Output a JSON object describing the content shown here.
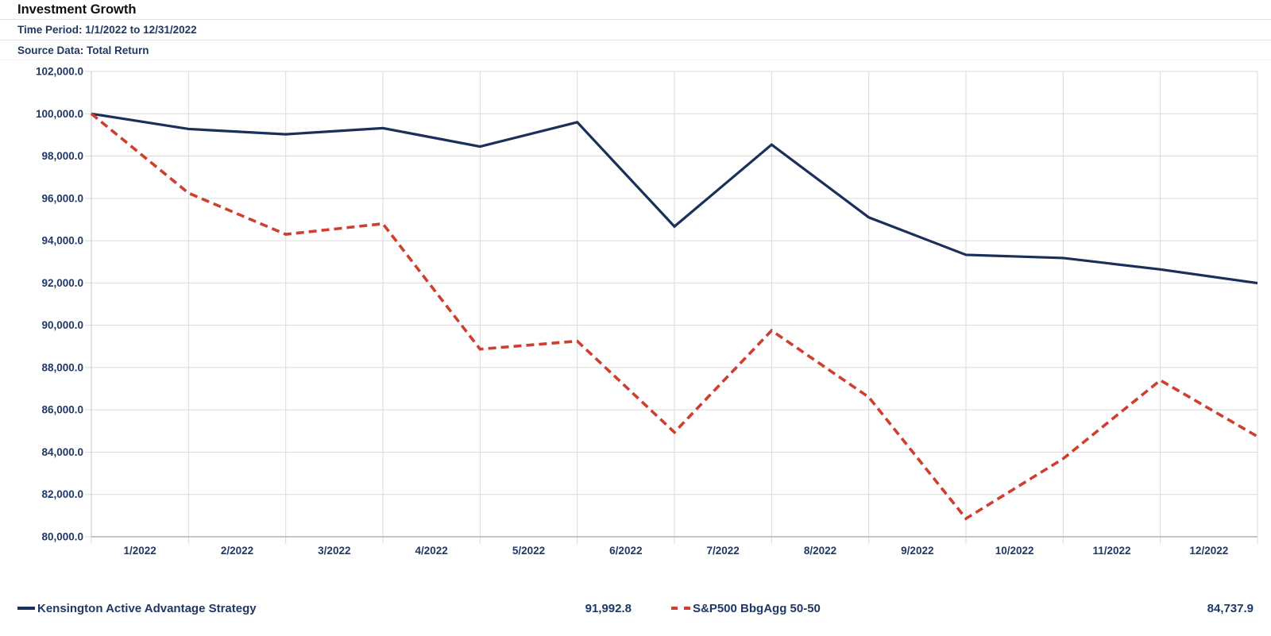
{
  "header": {
    "title": "Investment Growth",
    "time_period": "Time Period: 1/1/2022 to 12/31/2022",
    "source_data": "Source Data: Total Return"
  },
  "chart_data": {
    "type": "line",
    "title": "Investment Growth",
    "xlabel": "",
    "ylabel": "",
    "ylim": [
      80000,
      102000
    ],
    "ytick_step": 2000,
    "grid": true,
    "legend_position": "bottom",
    "x_note": "series values have 13 points: portfolio start value followed by each month-end; categories label the 12 months",
    "categories": [
      "1/2022",
      "2/2022",
      "3/2022",
      "4/2022",
      "5/2022",
      "6/2022",
      "7/2022",
      "8/2022",
      "9/2022",
      "10/2022",
      "11/2022",
      "12/2022"
    ],
    "series": [
      {
        "name": "Kensington Active Advantage Strategy",
        "color": "#1a2f5a",
        "style": "solid",
        "values": [
          100000,
          99280,
          99030,
          99320,
          98450,
          99600,
          94670,
          98540,
          95100,
          93330,
          93180,
          92640,
          91992.8
        ],
        "final_value_label": "91,992.8"
      },
      {
        "name": "S&P500 BbgAgg 50-50",
        "color": "#cf3e2e",
        "style": "dashed",
        "values": [
          100000,
          96250,
          94300,
          94800,
          88870,
          89250,
          84940,
          89750,
          86600,
          80860,
          83690,
          87400,
          84737.9
        ],
        "final_value_label": "84,737.9"
      }
    ]
  },
  "legend": {
    "items": [
      {
        "label": "Kensington Active Advantage Strategy",
        "value": "91,992.8"
      },
      {
        "label": "S&P500 BbgAgg 50-50",
        "value": "84,737.9"
      }
    ]
  },
  "colors": {
    "header_text": "#1f3864",
    "axis_text": "#1f3864",
    "gridline": "#dbdbdb",
    "axis_line": "#b3b3b3",
    "series_1": "#1a2f5a",
    "series_2": "#cf3e2e"
  }
}
